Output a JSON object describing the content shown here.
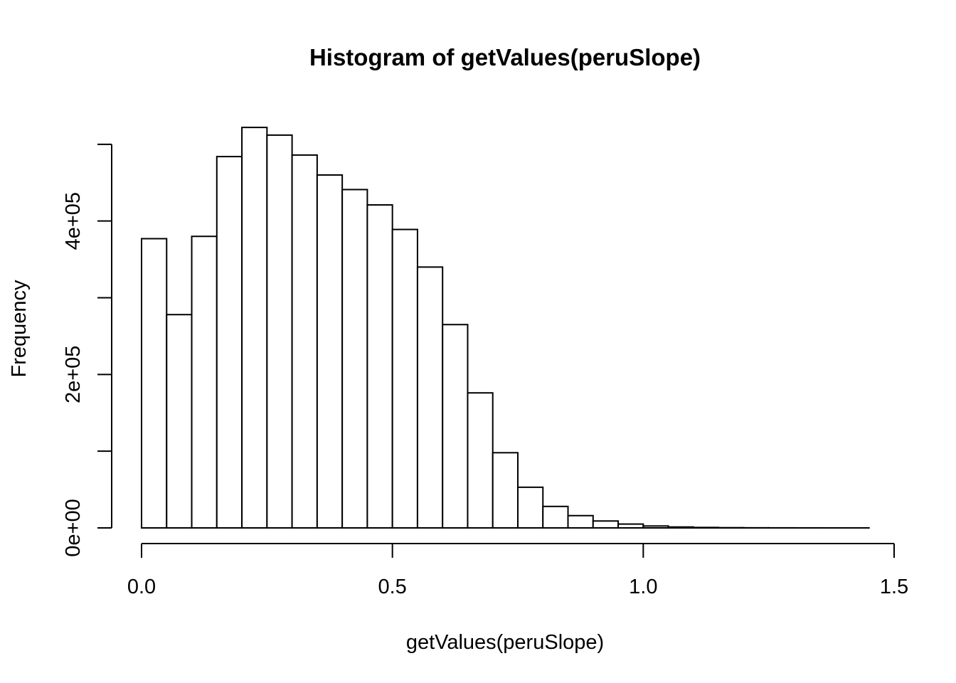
{
  "chart_data": {
    "type": "bar",
    "title": "Histogram of getValues(peruSlope)",
    "xlabel": "getValues(peruSlope)",
    "ylabel": "Frequency",
    "xlim": [
      0,
      1.5
    ],
    "ylim": [
      0,
      500000
    ],
    "x_ticks": [
      0,
      0.5,
      1,
      1.5
    ],
    "x_tick_labels": [
      "0.0",
      "0.5",
      "1.0",
      "1.5"
    ],
    "y_ticks": [
      0,
      100000,
      200000,
      300000,
      400000,
      500000
    ],
    "y_tick_labels": [
      "0e+00",
      "",
      "2e+05",
      "",
      "4e+05",
      ""
    ],
    "bin_width": 0.05,
    "bin_edges": [
      0,
      0.05,
      0.1,
      0.15,
      0.2,
      0.25,
      0.3,
      0.35,
      0.4,
      0.45,
      0.5,
      0.55,
      0.6,
      0.65,
      0.7,
      0.75,
      0.8,
      0.85,
      0.9,
      0.95,
      1.0,
      1.05,
      1.1,
      1.15,
      1.2,
      1.25,
      1.3,
      1.35,
      1.4,
      1.45
    ],
    "values": [
      377000,
      278000,
      380000,
      484000,
      522000,
      512000,
      486000,
      460000,
      441000,
      421000,
      389000,
      340000,
      265000,
      176000,
      98000,
      53000,
      28000,
      16000,
      9000,
      5000,
      2500,
      1200,
      600,
      300,
      150,
      80,
      40,
      20,
      10
    ],
    "grid": false,
    "legend": "none",
    "bar_fill": "#ffffff",
    "bar_stroke": "#000000"
  }
}
